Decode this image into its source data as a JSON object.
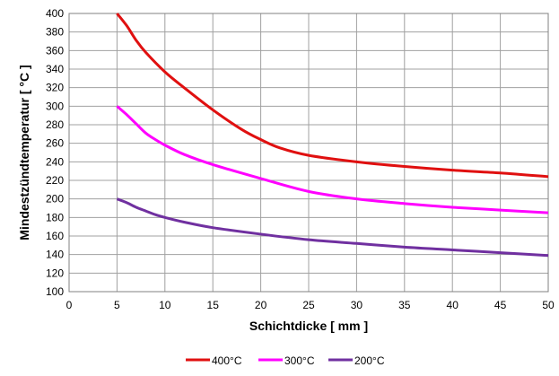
{
  "chart_data": {
    "type": "line",
    "title": "",
    "xlabel": "Schichtdicke [ mm ]",
    "ylabel": "Mindestzündtemperatur [ °C ]",
    "xlim": [
      0,
      50
    ],
    "ylim": [
      100,
      400
    ],
    "x_ticks": [
      "0",
      "5",
      "10",
      "15",
      "20",
      "25",
      "30",
      "35",
      "40",
      "45",
      "50"
    ],
    "y_ticks": [
      "100",
      "120",
      "140",
      "160",
      "180",
      "200",
      "220",
      "240",
      "260",
      "280",
      "300",
      "320",
      "340",
      "360",
      "380",
      "400"
    ],
    "grid": true,
    "legend_position": "bottom",
    "series": [
      {
        "name": "400°C",
        "color": "#e01010",
        "x": [
          5,
          6,
          7,
          8,
          10,
          12,
          15,
          18,
          20,
          22,
          25,
          30,
          35,
          40,
          45,
          50
        ],
        "y": [
          400,
          387,
          371,
          358,
          337,
          320,
          296,
          275,
          264,
          255,
          247,
          240,
          235,
          231,
          228,
          224
        ]
      },
      {
        "name": "300°C",
        "color": "#ff00ff",
        "x": [
          5,
          6,
          7,
          8,
          9,
          10,
          12,
          15,
          20,
          25,
          30,
          35,
          40,
          45,
          50
        ],
        "y": [
          300,
          291,
          281,
          271,
          264,
          258,
          248,
          237,
          222,
          208,
          200,
          195,
          191,
          188,
          185
        ]
      },
      {
        "name": "200°C",
        "color": "#7030a0",
        "x": [
          5,
          6,
          7,
          8,
          9,
          10,
          12,
          15,
          20,
          25,
          30,
          35,
          40,
          45,
          50
        ],
        "y": [
          200,
          196,
          191,
          187,
          183,
          180,
          175,
          169,
          162,
          156,
          152,
          148,
          145,
          142,
          139
        ]
      }
    ]
  }
}
